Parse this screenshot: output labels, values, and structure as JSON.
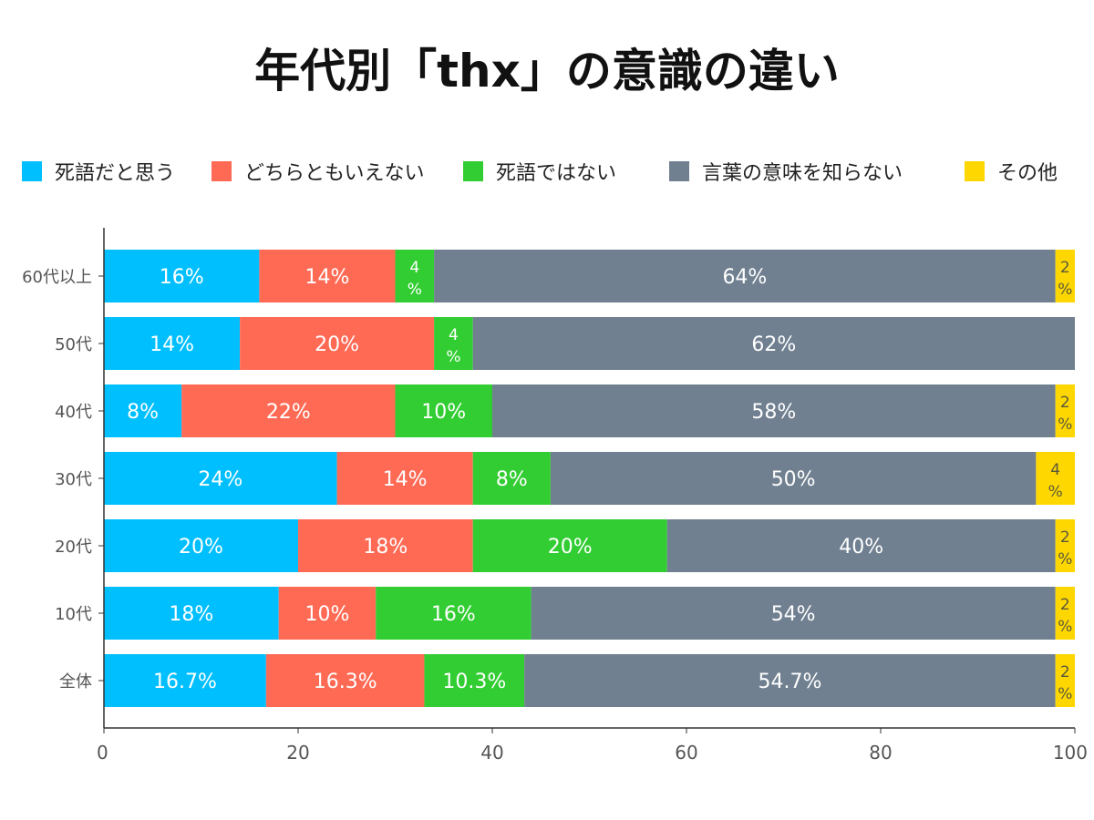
{
  "chart_data": {
    "type": "bar",
    "orientation": "horizontal",
    "stacked": true,
    "title": "年代別「thx」の意識の違い",
    "xlabel": "",
    "ylabel": "",
    "xlim": [
      0,
      100
    ],
    "x_ticks": [
      "0",
      "20",
      "40",
      "60",
      "80",
      "100"
    ],
    "grid": false,
    "legend_position": "top",
    "categories": [
      "60代以上",
      "50代",
      "40代",
      "30代",
      "20代",
      "10代",
      "全体"
    ],
    "series": [
      {
        "name": "死語だと思う",
        "color": "#00BFFF",
        "values": [
          16,
          14,
          8,
          24,
          20,
          18,
          16.7
        ],
        "labels": [
          "16%",
          "14%",
          "8%",
          "24%",
          "20%",
          "18%",
          "16.7%"
        ]
      },
      {
        "name": "どちらともいえない",
        "color": "#FF6A55",
        "values": [
          14,
          20,
          22,
          14,
          18,
          10,
          16.3
        ],
        "labels": [
          "14%",
          "20%",
          "22%",
          "14%",
          "18%",
          "10%",
          "16.3%"
        ]
      },
      {
        "name": "死語ではない",
        "color": "#32CD32",
        "values": [
          4,
          4,
          10,
          8,
          20,
          16,
          10.3
        ],
        "labels": [
          "4%",
          "4%",
          "10%",
          "8%",
          "20%",
          "16%",
          "10.3%"
        ]
      },
      {
        "name": "言葉の意味を知らない",
        "color": "#708090",
        "values": [
          64,
          62,
          58,
          50,
          40,
          54,
          54.7
        ],
        "labels": [
          "64%",
          "62%",
          "58%",
          "50%",
          "40%",
          "54%",
          "54.7%"
        ]
      },
      {
        "name": "その他",
        "color": "#FFD700",
        "values": [
          2,
          0,
          2,
          4,
          2,
          2,
          2
        ],
        "labels": [
          "2%",
          "",
          "2%",
          "4%",
          "2%",
          "2%",
          "2%"
        ]
      }
    ]
  }
}
